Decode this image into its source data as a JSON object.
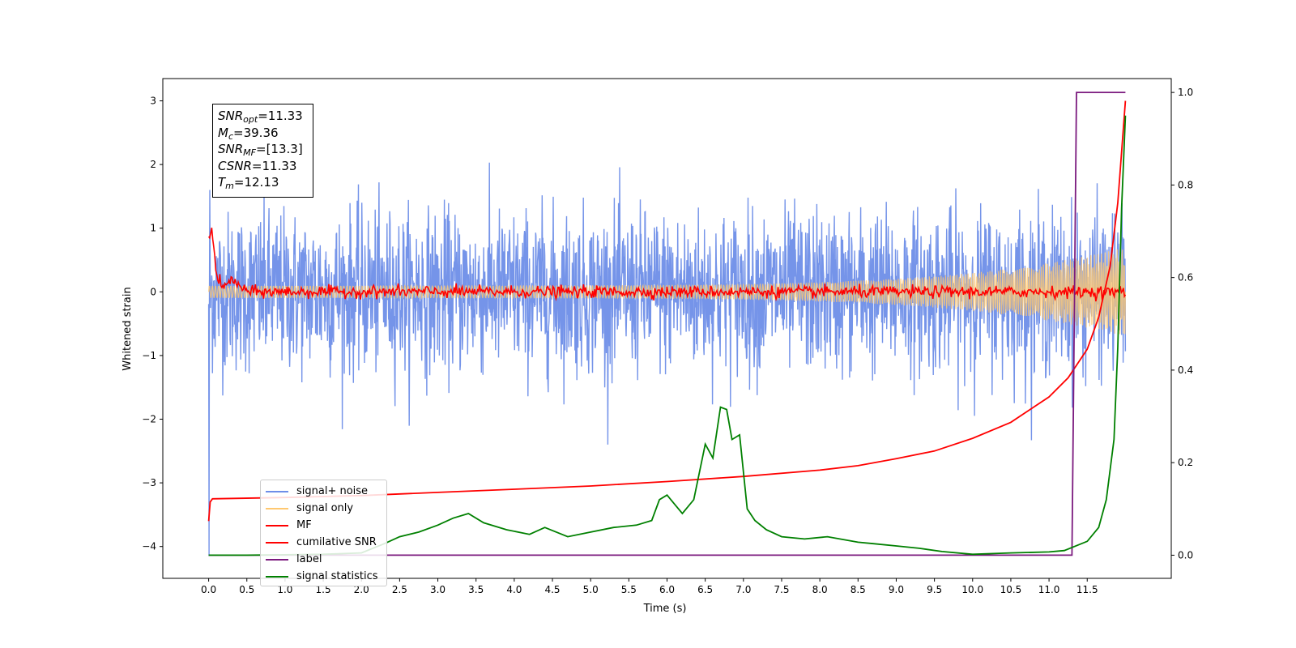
{
  "chart_data": {
    "type": "line",
    "xlabel": "Time (s)",
    "ylabel": "Whitened strain",
    "xlim": [
      -0.6,
      12.6
    ],
    "ylim": [
      -4.5,
      3.35
    ],
    "ylim_right": [
      -0.05,
      1.03
    ],
    "x_ticks": [
      "0.0",
      "0.5",
      "1.0",
      "1.5",
      "2.0",
      "2.5",
      "3.0",
      "3.5",
      "4.0",
      "4.5",
      "5.0",
      "5.5",
      "6.0",
      "6.5",
      "7.0",
      "7.5",
      "8.0",
      "8.5",
      "9.0",
      "9.5",
      "10.0",
      "10.5",
      "11.0",
      "11.5"
    ],
    "y_ticks": [
      "3",
      "2",
      "1",
      "0",
      "−1",
      "−2",
      "−3",
      "−4"
    ],
    "y_right_ticks": [
      "1.0",
      "0.8",
      "0.6",
      "0.4",
      "0.2",
      "0.0"
    ],
    "legend_placement": "lower-left",
    "grid": false,
    "series": [
      {
        "name": "signal+ noise",
        "color": "#6e8ee8",
        "axis": "left",
        "description_values": {
          "x_range": [
            0.0,
            12.0
          ],
          "amplitude_typical": 1.5,
          "amplitude_peak": 2.5,
          "min": -4.15
        }
      },
      {
        "name": "signal only",
        "color": "#ffc870",
        "axis": "left",
        "x_range": [
          0.0,
          12.0
        ],
        "amplitude_start": 0.1,
        "amplitude_end": 0.7
      },
      {
        "name": "MF",
        "color": "#ff0000",
        "axis": "left",
        "x": [
          0.0,
          0.05,
          0.1,
          0.2,
          0.3,
          0.5,
          1.0,
          12.0
        ],
        "y": [
          0.9,
          0.95,
          0.25,
          0.05,
          0.2,
          0.0,
          0.0,
          0.0
        ]
      },
      {
        "name": "cumilative SNR",
        "color": "#ff0000",
        "axis": "left",
        "x": [
          0.0,
          0.02,
          0.05,
          1.0,
          2.0,
          3.0,
          4.0,
          5.0,
          6.0,
          7.0,
          8.0,
          8.5,
          9.0,
          9.5,
          10.0,
          10.5,
          11.0,
          11.25,
          11.5,
          11.65,
          11.8,
          11.9,
          12.0
        ],
        "y": [
          -3.6,
          -3.3,
          -3.25,
          -3.23,
          -3.2,
          -3.15,
          -3.1,
          -3.05,
          -2.98,
          -2.9,
          -2.8,
          -2.73,
          -2.62,
          -2.5,
          -2.3,
          -2.05,
          -1.65,
          -1.35,
          -0.9,
          -0.4,
          0.4,
          1.4,
          3.0
        ]
      },
      {
        "name": "label",
        "color": "#7b1a7e",
        "axis": "right",
        "x": [
          0.0,
          11.3,
          11.36,
          12.0
        ],
        "y": [
          0.0,
          0.0,
          1.0,
          1.0
        ]
      },
      {
        "name": "signal statistics",
        "color": "#008000",
        "axis": "right",
        "x": [
          0.0,
          0.5,
          1.0,
          1.5,
          2.0,
          2.3,
          2.5,
          2.75,
          3.0,
          3.2,
          3.4,
          3.6,
          3.9,
          4.2,
          4.4,
          4.7,
          5.0,
          5.3,
          5.6,
          5.8,
          5.9,
          6.0,
          6.1,
          6.2,
          6.35,
          6.5,
          6.6,
          6.7,
          6.78,
          6.85,
          6.95,
          7.05,
          7.15,
          7.3,
          7.5,
          7.8,
          8.1,
          8.5,
          8.7,
          9.0,
          9.3,
          9.6,
          10.0,
          10.5,
          11.0,
          11.2,
          11.5,
          11.65,
          11.75,
          11.85,
          11.9,
          11.95,
          12.0
        ],
        "y": [
          0.0,
          0.0,
          0.001,
          0.002,
          0.005,
          0.025,
          0.04,
          0.05,
          0.065,
          0.08,
          0.09,
          0.07,
          0.055,
          0.045,
          0.06,
          0.04,
          0.05,
          0.06,
          0.065,
          0.075,
          0.12,
          0.13,
          0.11,
          0.09,
          0.12,
          0.24,
          0.21,
          0.32,
          0.315,
          0.25,
          0.26,
          0.1,
          0.075,
          0.055,
          0.04,
          0.035,
          0.04,
          0.028,
          0.025,
          0.02,
          0.015,
          0.008,
          0.002,
          0.005,
          0.007,
          0.01,
          0.03,
          0.06,
          0.12,
          0.25,
          0.45,
          0.75,
          0.95
        ]
      }
    ],
    "annotations": [
      {
        "var": "SNR",
        "sub": "opt",
        "value": "=11.33"
      },
      {
        "var": "M",
        "sub": "c",
        "value": "=39.36"
      },
      {
        "var": "SNR",
        "sub": "MF",
        "value": "=[13.3]"
      },
      {
        "var": "CSNR",
        "sub": "",
        "value": "=11.33"
      },
      {
        "var": "T",
        "sub": "m",
        "value": "=12.13"
      }
    ]
  }
}
